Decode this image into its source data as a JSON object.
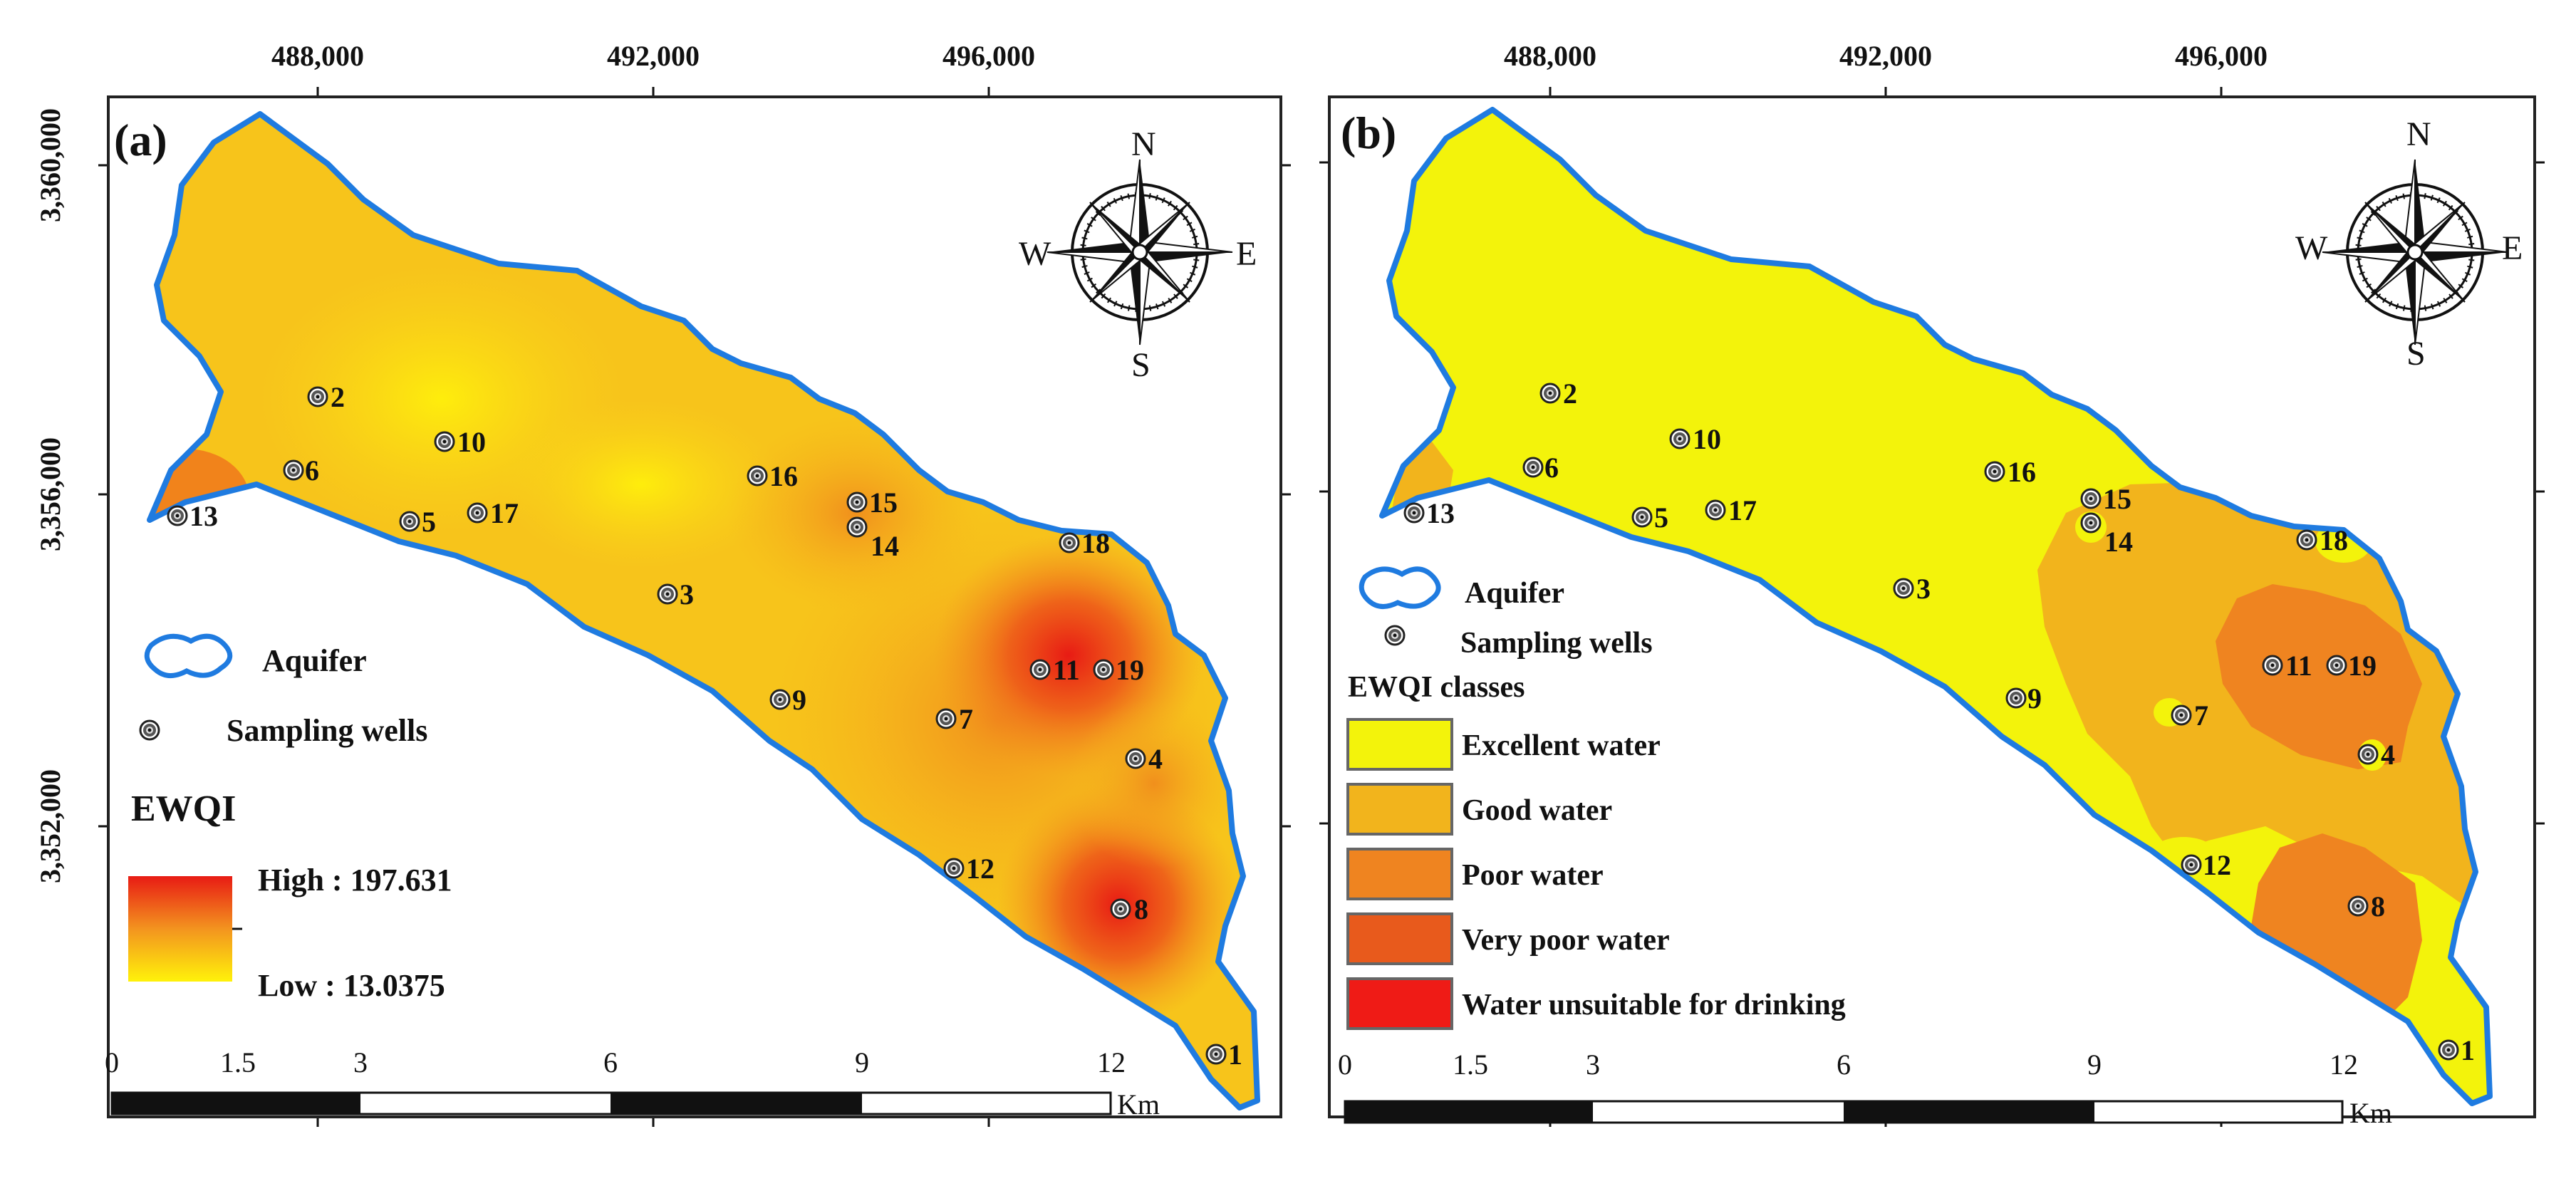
{
  "x_ticks": [
    "488,000",
    "492,000",
    "496,000"
  ],
  "y_ticks": [
    "3,360,000",
    "3,356,000",
    "3,352,000"
  ],
  "panels": [
    {
      "letter": "(a)",
      "legend": {
        "aquifer": "Aquifer",
        "wells": "Sampling wells",
        "ramp_title": "EWQI",
        "high": "High : 197.631",
        "low": "Low : 13.0375"
      },
      "ramp_colors": [
        "#e81b14",
        "#f3941f",
        "#fff20a"
      ]
    },
    {
      "letter": "(b)",
      "legend": {
        "aquifer": "Aquifer",
        "wells": "Sampling wells",
        "classes_title": "EWQI classes",
        "classes": [
          {
            "label": "Excellent water",
            "color": "#f3f30b"
          },
          {
            "label": "Good water",
            "color": "#f2b41c"
          },
          {
            "label": "Poor water",
            "color": "#ef8420"
          },
          {
            "label": "Very poor water",
            "color": "#e85a1c"
          },
          {
            "label": "Water unsuitable for drinking",
            "color": "#ef1b16"
          }
        ]
      }
    }
  ],
  "compass": {
    "n": "N",
    "s": "S",
    "e": "E",
    "w": "W"
  },
  "scale_bar": {
    "labels": [
      "0",
      "1.5",
      "3",
      "6",
      "9",
      "12"
    ],
    "unit": "Km"
  },
  "wells": [
    "1",
    "2",
    "4",
    "5",
    "6",
    "8",
    "10",
    "11",
    "12",
    "13",
    "14",
    "15",
    "16",
    "17",
    "18",
    "19",
    "3",
    "7",
    "9"
  ],
  "colors": {
    "aquifer_outline": "#1f7be0",
    "map_base_a": "#f7c41b",
    "excellent": "#f3f30b",
    "good": "#f2b41c",
    "poor": "#ef8420",
    "very_poor": "#e85a1c",
    "unsuitable": "#ef1b16"
  }
}
